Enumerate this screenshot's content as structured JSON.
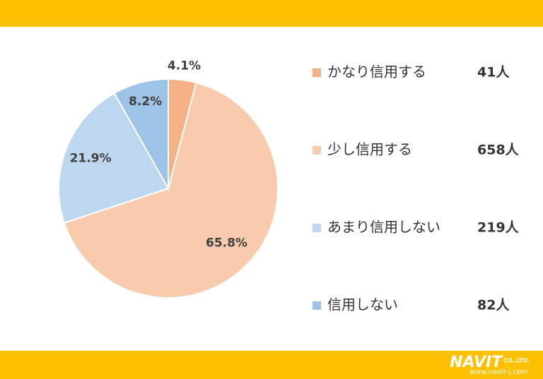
{
  "chart_data": {
    "type": "pie",
    "categories": [
      "かなり信用する",
      "少し信用する",
      "あまり信用しない",
      "信用しない"
    ],
    "values": [
      4.1,
      65.8,
      21.9,
      8.2
    ],
    "value_labels": [
      "4.1%",
      "65.8%",
      "21.9%",
      "8.2%"
    ],
    "colors": [
      "#F4B183",
      "#F8CBAD",
      "#BDD7EE",
      "#9DC3E6"
    ],
    "counts": [
      {
        "value": 41,
        "label": "41人"
      },
      {
        "value": 658,
        "label": "658人"
      },
      {
        "value": 219,
        "label": "219人"
      },
      {
        "value": 82,
        "label": "82人"
      }
    ]
  },
  "footer": {
    "logo": "NAVIT",
    "company": "CO.,LTD.",
    "url": "www.navit-j.com"
  }
}
